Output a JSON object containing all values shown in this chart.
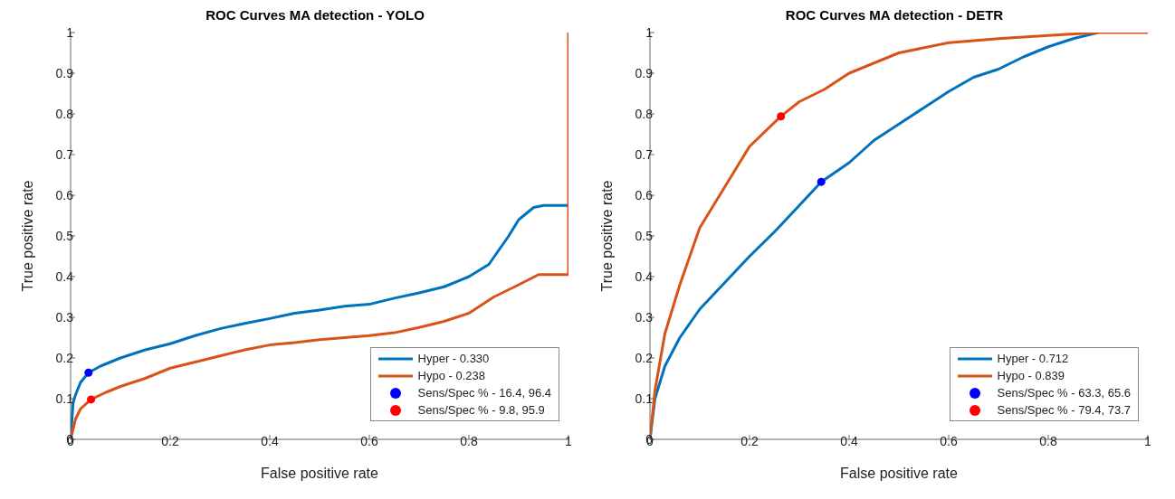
{
  "chart_data": [
    {
      "type": "line",
      "title": "ROC Curves MA detection - YOLO",
      "xlabel": "False positive rate",
      "ylabel": "True positive rate",
      "xlim": [
        0,
        1
      ],
      "ylim": [
        0,
        1
      ],
      "xticks": [
        0,
        0.2,
        0.4,
        0.6,
        0.8,
        1
      ],
      "yticks": [
        0,
        0.1,
        0.2,
        0.3,
        0.4,
        0.5,
        0.6,
        0.7,
        0.8,
        0.9,
        1
      ],
      "grid": false,
      "legend": "bottom right",
      "line_style": "solid",
      "series": [
        {
          "name": "Hyper - 0.330",
          "type": "line",
          "marker": "none",
          "color": "#0072bd",
          "x": [
            0,
            0.005,
            0.01,
            0.02,
            0.036,
            0.06,
            0.1,
            0.15,
            0.2,
            0.25,
            0.3,
            0.35,
            0.4,
            0.45,
            0.5,
            0.55,
            0.6,
            0.65,
            0.7,
            0.75,
            0.8,
            0.84,
            0.88,
            0.9,
            0.93,
            0.95,
            1
          ],
          "values": [
            0,
            0.09,
            0.11,
            0.14,
            0.164,
            0.18,
            0.2,
            0.22,
            0.235,
            0.255,
            0.272,
            0.285,
            0.297,
            0.31,
            0.318,
            0.327,
            0.332,
            0.347,
            0.36,
            0.375,
            0.4,
            0.43,
            0.5,
            0.54,
            0.57,
            0.575,
            0.575
          ]
        },
        {
          "name": "Hypo - 0.238",
          "type": "line",
          "marker": "none",
          "color": "#d95319",
          "x": [
            0,
            0.01,
            0.02,
            0.041,
            0.07,
            0.1,
            0.15,
            0.2,
            0.25,
            0.3,
            0.35,
            0.4,
            0.45,
            0.5,
            0.55,
            0.6,
            0.65,
            0.7,
            0.75,
            0.8,
            0.85,
            0.9,
            0.94,
            1,
            1
          ],
          "values": [
            0,
            0.05,
            0.075,
            0.098,
            0.115,
            0.13,
            0.15,
            0.175,
            0.19,
            0.205,
            0.22,
            0.232,
            0.238,
            0.245,
            0.25,
            0.255,
            0.262,
            0.275,
            0.29,
            0.31,
            0.35,
            0.38,
            0.405,
            0.405,
            1
          ]
        },
        {
          "name": "Sens/Spec % - 16.4, 96.4",
          "type": "scatter",
          "marker": "circle",
          "color": "#0000ff",
          "x": [
            0.036
          ],
          "values": [
            0.164
          ]
        },
        {
          "name": "Sens/Spec % - 9.8, 95.9",
          "type": "scatter",
          "marker": "circle",
          "color": "#ff0000",
          "x": [
            0.041
          ],
          "values": [
            0.098
          ]
        }
      ]
    },
    {
      "type": "line",
      "title": "ROC Curves MA detection - DETR",
      "xlabel": "False positive rate",
      "ylabel": "True positive rate",
      "xlim": [
        0,
        1
      ],
      "ylim": [
        0,
        1
      ],
      "xticks": [
        0,
        0.2,
        0.4,
        0.6,
        0.8,
        1
      ],
      "yticks": [
        0,
        0.1,
        0.2,
        0.3,
        0.4,
        0.5,
        0.6,
        0.7,
        0.8,
        0.9,
        1
      ],
      "grid": false,
      "legend": "bottom right",
      "line_style": "solid",
      "series": [
        {
          "name": "Hyper - 0.712",
          "type": "line",
          "marker": "none",
          "color": "#0072bd",
          "x": [
            0,
            0.01,
            0.03,
            0.06,
            0.1,
            0.15,
            0.2,
            0.25,
            0.3,
            0.344,
            0.4,
            0.45,
            0.5,
            0.55,
            0.6,
            0.65,
            0.7,
            0.75,
            0.8,
            0.85,
            0.9
          ],
          "values": [
            0,
            0.1,
            0.18,
            0.25,
            0.32,
            0.385,
            0.45,
            0.51,
            0.575,
            0.633,
            0.68,
            0.735,
            0.775,
            0.815,
            0.855,
            0.89,
            0.91,
            0.94,
            0.965,
            0.985,
            1
          ]
        },
        {
          "name": "Hypo - 0.839",
          "type": "line",
          "marker": "none",
          "color": "#d95319",
          "x": [
            0,
            0.01,
            0.03,
            0.06,
            0.1,
            0.15,
            0.2,
            0.263,
            0.3,
            0.35,
            0.4,
            0.45,
            0.5,
            0.6,
            0.7,
            0.8,
            0.9,
            1
          ],
          "values": [
            0,
            0.12,
            0.26,
            0.38,
            0.52,
            0.62,
            0.72,
            0.794,
            0.83,
            0.86,
            0.9,
            0.925,
            0.95,
            0.975,
            0.985,
            0.993,
            1,
            1
          ]
        },
        {
          "name": "Sens/Spec % - 63.3, 65.6",
          "type": "scatter",
          "marker": "circle",
          "color": "#0000ff",
          "x": [
            0.344
          ],
          "values": [
            0.633
          ]
        },
        {
          "name": "Sens/Spec % - 79.4, 73.7",
          "type": "scatter",
          "marker": "circle",
          "color": "#ff0000",
          "x": [
            0.263
          ],
          "values": [
            0.794
          ]
        }
      ]
    }
  ]
}
